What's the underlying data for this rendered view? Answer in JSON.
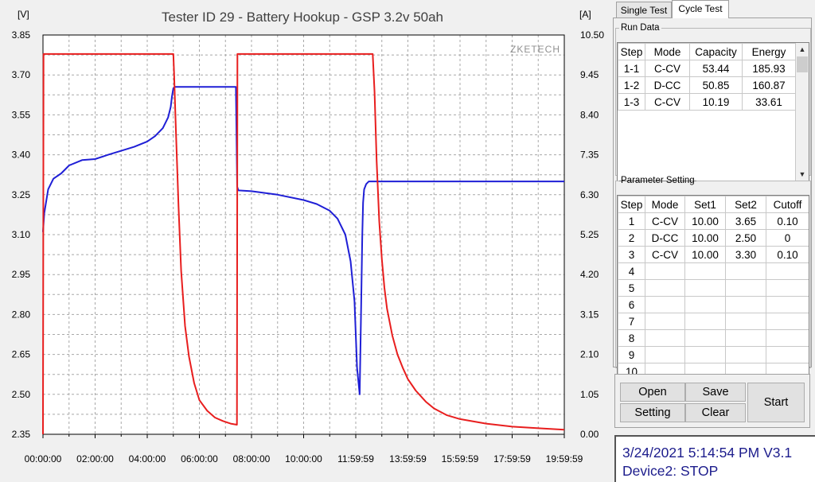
{
  "chart_data": {
    "type": "line",
    "title": "Tester ID 29 - Battery Hookup - GSP 3.2v 50ah",
    "left_axis_unit": "[V]",
    "right_axis_unit": "[A]",
    "watermark": "ZKETECH",
    "x_tick_labels": [
      "00:00:00",
      "02:00:00",
      "04:00:00",
      "06:00:00",
      "08:00:00",
      "10:00:00",
      "11:59:59",
      "13:59:59",
      "15:59:59",
      "17:59:59",
      "19:59:59"
    ],
    "x_range_hours": [
      0,
      20
    ],
    "ylim_left": [
      2.35,
      3.85
    ],
    "ylim_right": [
      0.0,
      10.5
    ],
    "left_ticks": [
      "3.85",
      "3.70",
      "3.55",
      "3.40",
      "3.25",
      "3.10",
      "2.95",
      "2.80",
      "2.65",
      "2.50",
      "2.35"
    ],
    "right_ticks": [
      "10.50",
      "9.45",
      "8.40",
      "7.35",
      "6.30",
      "5.25",
      "4.20",
      "3.15",
      "2.10",
      "1.05",
      "0.00"
    ],
    "grid": true,
    "series": [
      {
        "axis": "left",
        "color": "#1f1fd6",
        "x": [
          0.0,
          0.05,
          0.2,
          0.4,
          0.7,
          1.0,
          1.5,
          2.0,
          2.5,
          3.0,
          3.5,
          4.0,
          4.3,
          4.6,
          4.8,
          4.9,
          4.95,
          5.0,
          5.05,
          5.1,
          6.0,
          7.0,
          7.4,
          7.45,
          7.5,
          8.0,
          9.0,
          10.0,
          10.5,
          11.0,
          11.3,
          11.6,
          11.8,
          11.95,
          12.05,
          12.15,
          12.2,
          12.25,
          12.28,
          12.32,
          12.4,
          12.5,
          12.7,
          13.0,
          14.0,
          16.0,
          18.0,
          20.0
        ],
        "y": [
          3.11,
          3.18,
          3.27,
          3.31,
          3.33,
          3.36,
          3.38,
          3.384,
          3.4,
          3.415,
          3.43,
          3.45,
          3.47,
          3.5,
          3.54,
          3.58,
          3.62,
          3.65,
          3.655,
          3.655,
          3.655,
          3.655,
          3.655,
          3.28,
          3.266,
          3.263,
          3.25,
          3.23,
          3.215,
          3.19,
          3.16,
          3.1,
          3.0,
          2.85,
          2.6,
          2.5,
          2.8,
          3.1,
          3.22,
          3.27,
          3.29,
          3.3,
          3.3,
          3.3,
          3.3,
          3.3,
          3.3,
          3.3
        ]
      },
      {
        "axis": "right",
        "color": "#e81e1e",
        "x": [
          0.0,
          0.02,
          0.05,
          0.2,
          1.0,
          2.0,
          3.0,
          4.0,
          4.9,
          5.0,
          5.03,
          5.1,
          5.2,
          5.3,
          5.45,
          5.6,
          5.8,
          6.0,
          6.3,
          6.6,
          6.9,
          7.2,
          7.44,
          7.45,
          7.46,
          7.6,
          8.0,
          9.0,
          10.0,
          11.0,
          12.0,
          12.65,
          12.72,
          12.8,
          12.9,
          13.0,
          13.1,
          13.2,
          13.4,
          13.6,
          13.8,
          14.0,
          14.3,
          14.7,
          15.0,
          15.5,
          16.0,
          17.0,
          18.0,
          19.0,
          20.0
        ],
        "y": [
          0.0,
          10.0,
          10.0,
          10.0,
          10.0,
          10.0,
          10.0,
          10.0,
          10.0,
          10.0,
          9.5,
          8.0,
          6.0,
          4.3,
          2.85,
          2.05,
          1.35,
          0.9,
          0.62,
          0.44,
          0.35,
          0.28,
          0.25,
          5.0,
          10.0,
          10.0,
          10.0,
          10.0,
          10.0,
          10.0,
          10.0,
          10.0,
          9.0,
          7.2,
          5.6,
          4.6,
          3.85,
          3.3,
          2.6,
          2.1,
          1.75,
          1.45,
          1.15,
          0.85,
          0.68,
          0.5,
          0.4,
          0.28,
          0.2,
          0.16,
          0.12
        ]
      }
    ]
  },
  "tabs": [
    {
      "label": "Single Test",
      "active": false
    },
    {
      "label": "Cycle Test",
      "active": true
    }
  ],
  "run_data": {
    "legend": "Run Data",
    "headers": [
      "Step",
      "Mode",
      "Capacity",
      "Energy"
    ],
    "rows": [
      [
        "1-1",
        "C-CV",
        "53.44",
        "185.93"
      ],
      [
        "1-2",
        "D-CC",
        "50.85",
        "160.87"
      ],
      [
        "1-3",
        "C-CV",
        "10.19",
        "33.61"
      ]
    ],
    "scroll_up": "▲",
    "scroll_down": "▼"
  },
  "parameter_setting": {
    "legend": "Parameter Setting",
    "headers": [
      "Step",
      "Mode",
      "Set1",
      "Set2",
      "Cutoff"
    ],
    "rows": [
      [
        "1",
        "C-CV",
        "10.00",
        "3.65",
        "0.10"
      ],
      [
        "2",
        "D-CC",
        "10.00",
        "2.50",
        "0"
      ],
      [
        "3",
        "C-CV",
        "10.00",
        "3.30",
        "0.10"
      ],
      [
        "4",
        "",
        "",
        "",
        ""
      ],
      [
        "5",
        "",
        "",
        "",
        ""
      ],
      [
        "6",
        "",
        "",
        "",
        ""
      ],
      [
        "7",
        "",
        "",
        "",
        ""
      ],
      [
        "8",
        "",
        "",
        "",
        ""
      ],
      [
        "9",
        "",
        "",
        "",
        ""
      ],
      [
        "10",
        "",
        "",
        "",
        ""
      ]
    ]
  },
  "buttons": {
    "open": "Open",
    "save": "Save",
    "setting": "Setting",
    "clear": "Clear",
    "start": "Start"
  },
  "status": {
    "line1": "3/24/2021 5:14:54 PM  V3.1",
    "line2": "Device2: STOP"
  }
}
